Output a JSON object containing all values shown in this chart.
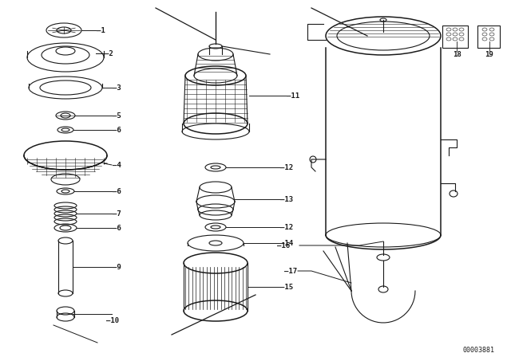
{
  "bg_color": "#ffffff",
  "line_color": "#1a1a1a",
  "fig_width": 6.4,
  "fig_height": 4.48,
  "dpi": 100,
  "diagram_id": "00003881"
}
